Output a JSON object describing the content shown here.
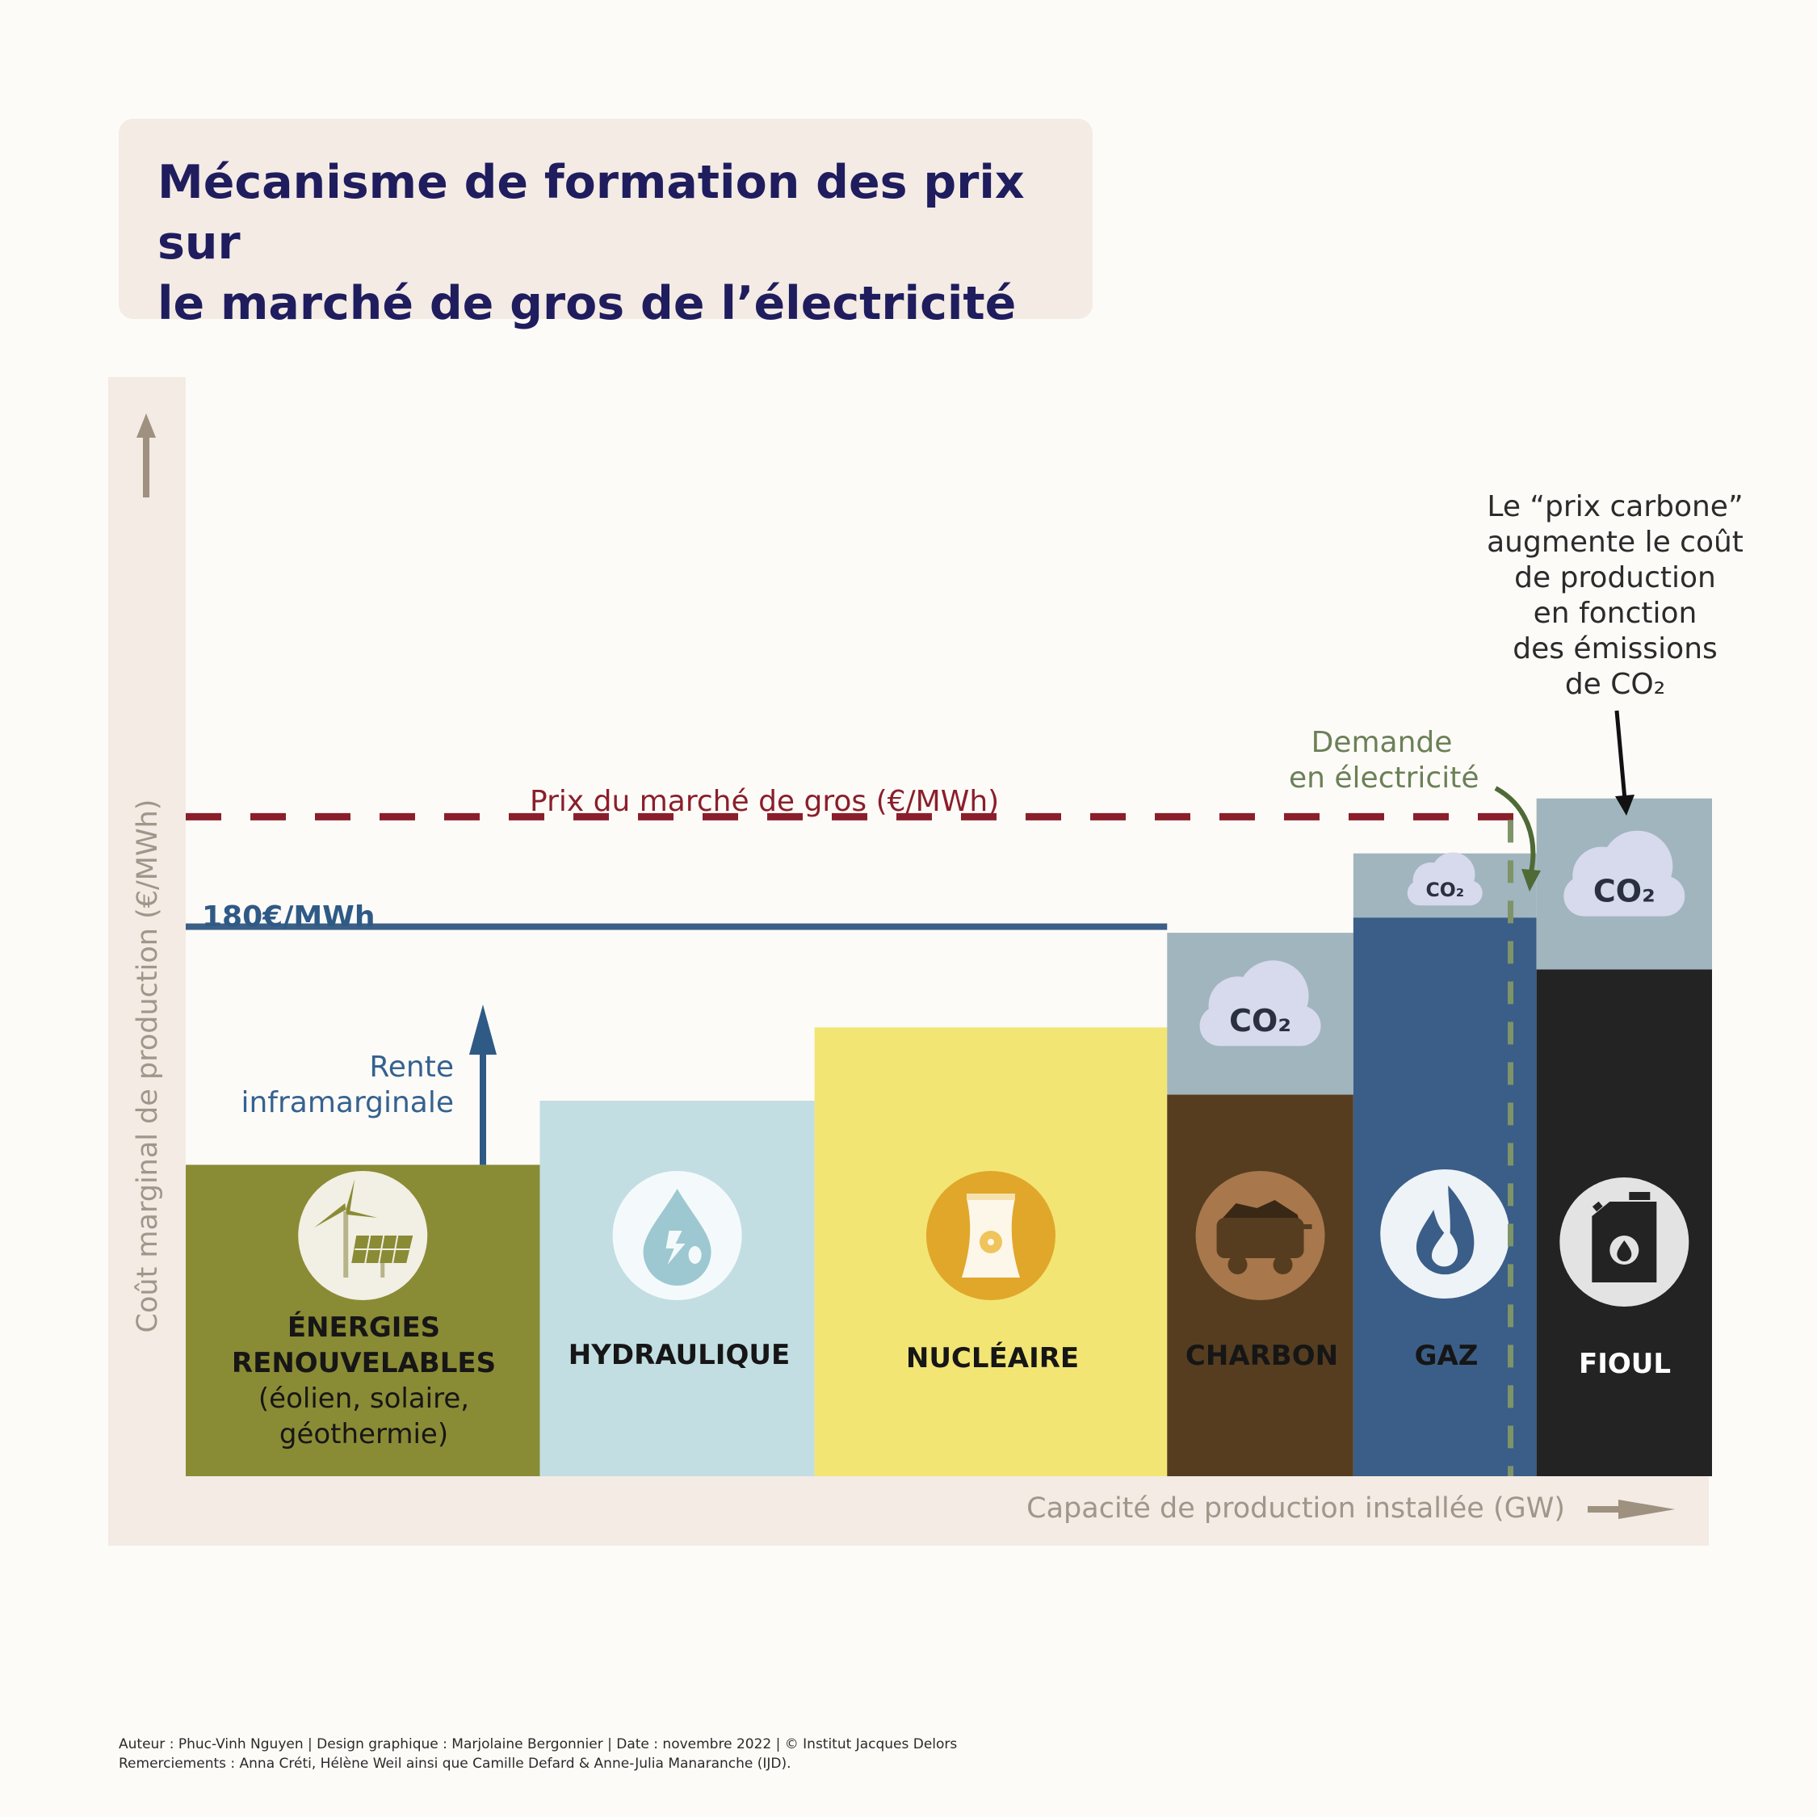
{
  "title": {
    "line1": "Mécanisme de formation des prix sur",
    "line2": "le marché de gros de l’électricité"
  },
  "chart_data": {
    "type": "bar",
    "title": "Mécanisme de formation des prix sur le marché de gros de l’électricité",
    "xlabel": "Capacité de production installée (GW)",
    "ylabel": "Coût marginal de production (€/MWh)",
    "ylim": [
      0,
      360
    ],
    "reference_line": {
      "label": "180€/MWh",
      "value": 180
    },
    "market_price": {
      "label": "Prix du marché de gros (€/MWh)",
      "value": 216
    },
    "demand": {
      "label_line1": "Demande",
      "label_line2": "en électricité",
      "x": 0.868
    },
    "rente_label": {
      "line1": "Rente",
      "line2": "inframarginale"
    },
    "carbon_note": [
      "Le “prix carbone”",
      "augmente le coût",
      "de production",
      "en fonction",
      "des émissions",
      "de CO₂"
    ],
    "co2_label": "CO₂",
    "colors": {
      "renouvelables": "#8a8b35",
      "hydraulique": "#c2dee2",
      "nucleaire": "#f2e574",
      "charbon": "#563d20",
      "gaz": "#3a5e87",
      "fioul": "#232323",
      "co2": "#a1b5be",
      "price_line": "#8a1f2b",
      "reference_line": "#3b5f86",
      "demand_line": "#7e9468",
      "axis_arrow": "#9e9180"
    },
    "categories": [
      {
        "key": "renouvelables",
        "name": "ÉNERGIES RENOUVELABLES",
        "name_line1": "ÉNERGIES",
        "name_line2": "RENOUVELABLES",
        "detail_line1": "(éolien, solaire,",
        "detail_line2": "géothermie)",
        "icon": "wind-solar-icon",
        "x_start": 0,
        "x_end": 0.232,
        "base_cost": 102,
        "co2_cost": 0
      },
      {
        "key": "hydraulique",
        "name": "HYDRAULIQUE",
        "icon": "water-drop-icon",
        "x_start": 0.232,
        "x_end": 0.412,
        "base_cost": 123,
        "co2_cost": 0
      },
      {
        "key": "nucleaire",
        "name": "NUCLÉAIRE",
        "icon": "nuclear-plant-icon",
        "x_start": 0.412,
        "x_end": 0.643,
        "base_cost": 147,
        "co2_cost": 0
      },
      {
        "key": "charbon",
        "name": "CHARBON",
        "icon": "coal-cart-icon",
        "x_start": 0.643,
        "x_end": 0.765,
        "base_cost": 125,
        "co2_cost": 53
      },
      {
        "key": "gaz",
        "name": "GAZ",
        "icon": "gas-flame-icon",
        "x_start": 0.765,
        "x_end": 0.885,
        "base_cost": 183,
        "co2_cost": 21
      },
      {
        "key": "fioul",
        "name": "FIOUL",
        "icon": "oil-can-icon",
        "x_start": 0.885,
        "x_end": 1,
        "base_cost": 166,
        "co2_cost": 56
      }
    ]
  },
  "footer": {
    "line1": "Auteur : Phuc-Vinh Nguyen  |  Design graphique : Marjolaine Bergonnier  |  Date : novembre 2022  |  © Institut Jacques Delors",
    "line2": "Remerciements : Anna Créti, Hélène Weil ainsi que Camille Defard & Anne-Julia Manaranche (IJD)."
  }
}
